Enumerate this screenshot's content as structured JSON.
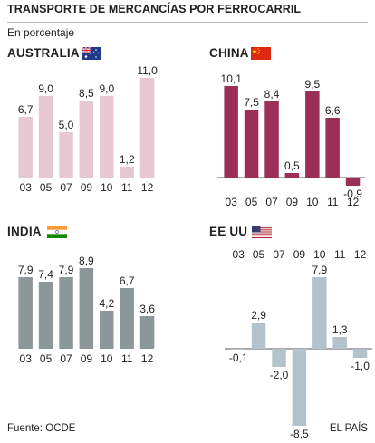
{
  "header": {
    "title": "TRANSPORTE DE MERCANCÍAS POR FERROCARRIL",
    "subtitle": "En porcentaje"
  },
  "footer": {
    "source": "Fuente: OCDE",
    "credit": "EL PAÍS"
  },
  "flags": {
    "australia": "australia-flag-icon",
    "china": "china-flag-icon",
    "india": "india-flag-icon",
    "usa": "usa-flag-icon"
  },
  "chart_data": [
    {
      "type": "bar",
      "title": "AUSTRALIA",
      "categories": [
        "03",
        "05",
        "07",
        "09",
        "10",
        "11",
        "12"
      ],
      "values": [
        6.7,
        9.0,
        5.0,
        8.5,
        9.0,
        1.2,
        11.0
      ],
      "labels": [
        "6,7",
        "9,0",
        "5,0",
        "8,5",
        "9,0",
        "1,2",
        "11,0"
      ],
      "color": "#e7c8d2"
    },
    {
      "type": "bar",
      "title": "CHINA",
      "categories": [
        "03",
        "05",
        "07",
        "09",
        "10",
        "11",
        "12"
      ],
      "values": [
        10.1,
        7.5,
        8.4,
        0.5,
        9.5,
        6.6,
        -0.9
      ],
      "labels": [
        "10,1",
        "7,5",
        "8,4",
        "0,5",
        "9,5",
        "6,6",
        "-0,9"
      ],
      "color": "#9b2f58"
    },
    {
      "type": "bar",
      "title": "INDIA",
      "categories": [
        "03",
        "05",
        "07",
        "09",
        "10",
        "11",
        "12"
      ],
      "values": [
        7.9,
        7.4,
        7.9,
        8.9,
        4.2,
        6.7,
        3.6
      ],
      "labels": [
        "7,9",
        "7,4",
        "7,9",
        "8,9",
        "4,2",
        "6,7",
        "3,6"
      ],
      "color": "#8c979a"
    },
    {
      "type": "bar",
      "title": "EE UU",
      "categories": [
        "03",
        "05",
        "07",
        "09",
        "10",
        "11",
        "12"
      ],
      "values": [
        -0.1,
        2.9,
        -2.0,
        -8.5,
        7.9,
        1.3,
        -1.0
      ],
      "labels": [
        "-0,1",
        "2,9",
        "-2,0",
        "-8,5",
        "7,9",
        "1,3",
        "-1,0"
      ],
      "color": "#b4c3cb"
    }
  ]
}
